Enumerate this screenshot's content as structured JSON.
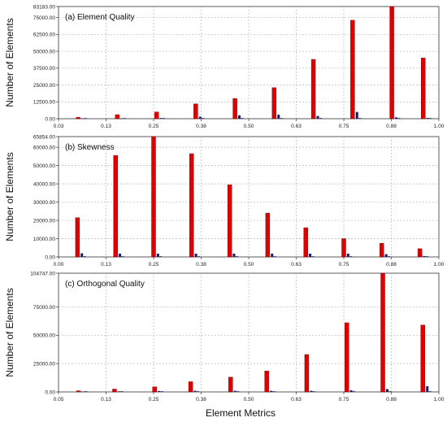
{
  "figure": {
    "xlabel": "Element Metrics"
  },
  "colors": {
    "primary_bar": "#e00000",
    "primary_bar_edge": "#600000",
    "secondary_bar": "#1a1a6e",
    "grid": "#b8b8b8",
    "axis": "#333333"
  },
  "chart_data": [
    {
      "type": "bar",
      "title": "(a) Element Quality",
      "ylabel": "Number of Elements",
      "xlim": [
        0.03,
        1.0
      ],
      "ylim": [
        0,
        83183
      ],
      "xticks": [
        "0.03",
        "0.13",
        "0.25",
        "0.38",
        "0.50",
        "0.63",
        "0.75",
        "0.88",
        "1.00"
      ],
      "yticks": [
        "0.00",
        "12500.00",
        "25000.00",
        "37500.00",
        "50000.00",
        "62500.00",
        "75000.00",
        "83183.00"
      ],
      "grid": true,
      "series": [
        {
          "x": [
            0.08,
            0.18,
            0.28,
            0.38,
            0.48,
            0.58,
            0.68,
            0.78,
            0.88,
            0.96
          ],
          "values": [
            1000,
            3000,
            5000,
            11000,
            15000,
            23000,
            44000,
            73000,
            83183,
            45000
          ]
        },
        {
          "x": [
            0.085,
            0.185,
            0.285,
            0.385,
            0.485,
            0.585,
            0.685,
            0.785,
            0.885,
            0.965
          ],
          "values": [
            300,
            300,
            500,
            1500,
            2500,
            3000,
            2000,
            5000,
            1000,
            600
          ]
        }
      ]
    },
    {
      "type": "bar",
      "title": "(b) Skewness",
      "ylabel": "Number of Elements",
      "xlim": [
        0.0,
        1.0
      ],
      "ylim": [
        0,
        65854
      ],
      "xticks": [
        "0.00",
        "0.13",
        "0.25",
        "0.38",
        "0.50",
        "0.63",
        "0.75",
        "0.88",
        "1.00"
      ],
      "yticks": [
        "0.00",
        "10000.00",
        "20000.00",
        "30000.00",
        "40000.00",
        "50000.00",
        "60000.00",
        "65854.00"
      ],
      "grid": true,
      "series": [
        {
          "x": [
            0.05,
            0.15,
            0.25,
            0.35,
            0.45,
            0.55,
            0.65,
            0.75,
            0.85,
            0.95
          ],
          "values": [
            21500,
            55500,
            65854,
            56500,
            39500,
            24000,
            16000,
            10000,
            7500,
            4500
          ]
        },
        {
          "x": [
            0.055,
            0.155,
            0.255,
            0.355,
            0.455,
            0.555,
            0.655,
            0.755,
            0.855,
            0.955
          ],
          "values": [
            2000,
            1800,
            1800,
            1800,
            1800,
            1800,
            1800,
            1800,
            1500,
            500
          ]
        }
      ]
    },
    {
      "type": "bar",
      "title": "(c) Orthogonal Quality",
      "ylabel": "Number of Elements",
      "xlim": [
        0.05,
        1.0
      ],
      "ylim": [
        0,
        104747
      ],
      "xticks": [
        "0.05",
        "0.13",
        "0.25",
        "0.38",
        "0.50",
        "0.63",
        "0.75",
        "0.88",
        "1.00"
      ],
      "yticks": [
        "0.00",
        "25000.00",
        "50000.00",
        "75000.00",
        "104747.00"
      ],
      "grid": true,
      "series": [
        {
          "x": [
            0.1,
            0.19,
            0.29,
            0.38,
            0.48,
            0.57,
            0.67,
            0.77,
            0.86,
            0.96
          ],
          "values": [
            1000,
            2500,
            4500,
            9000,
            13000,
            18500,
            33000,
            61000,
            104747,
            59000
          ]
        },
        {
          "x": [
            0.105,
            0.195,
            0.295,
            0.385,
            0.485,
            0.575,
            0.675,
            0.775,
            0.865,
            0.965
          ],
          "values": [
            400,
            500,
            800,
            1000,
            1000,
            1000,
            1000,
            1500,
            2500,
            5000
          ]
        }
      ]
    }
  ]
}
